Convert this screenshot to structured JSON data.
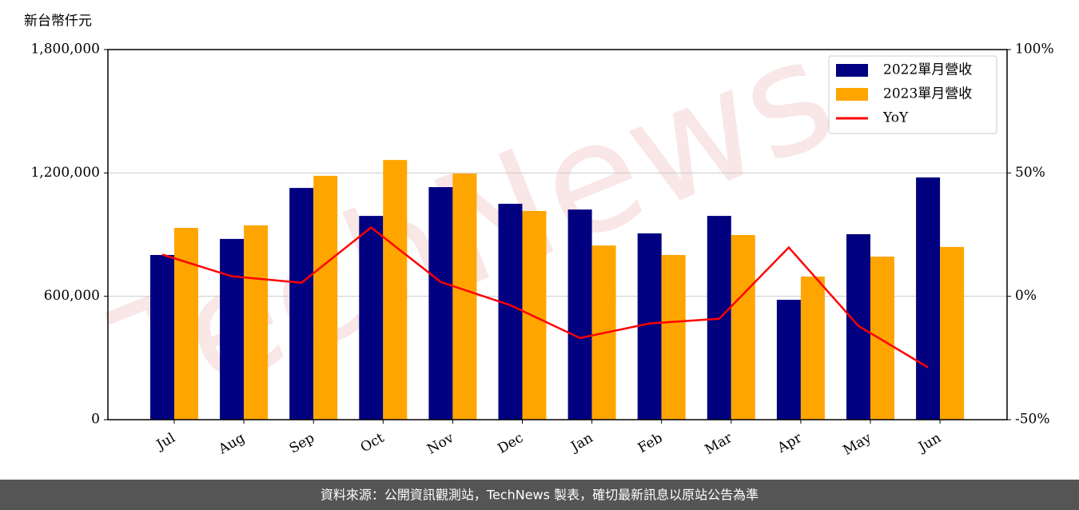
{
  "chart_data": {
    "type": "bar",
    "y_label": "新台幣仟元",
    "watermark": "TechNews",
    "source": "資料來源：公開資訊觀測站，TechNews 製表，確切最新訊息以原站公告為準",
    "categories": [
      "Jul",
      "Aug",
      "Sep",
      "Oct",
      "Nov",
      "Dec",
      "Jan",
      "Feb",
      "Mar",
      "Apr",
      "May",
      "Jun"
    ],
    "series": [
      {
        "name": "2022單月營收",
        "color": "#000080",
        "type": "bar",
        "values": [
          801000,
          879000,
          1127000,
          991000,
          1131000,
          1050000,
          1022000,
          906000,
          991000,
          583000,
          902000,
          1178000
        ]
      },
      {
        "name": "2023單月營收",
        "color": "#ffa500",
        "type": "bar",
        "values": [
          933000,
          945000,
          1186000,
          1263000,
          1197000,
          1015000,
          847000,
          801000,
          898000,
          696000,
          793000,
          840000
        ]
      },
      {
        "name": "YoY",
        "color": "#ff0000",
        "type": "line",
        "axis": "y2",
        "values": [
          16.9,
          8.1,
          5.5,
          27.9,
          5.8,
          -3.6,
          -16.9,
          -11.0,
          -9.1,
          19.8,
          -12.0,
          -28.8
        ]
      }
    ],
    "ylim": [
      0,
      1800000
    ],
    "yticks": [
      0,
      {
        "value": 600000,
        "label": "600,000"
      },
      {
        "value": 1200000,
        "label": "1,200,000"
      },
      {
        "value": 1800000,
        "label": "1,800,000"
      }
    ],
    "y2lim": [
      -50,
      100
    ],
    "y2ticks": [
      {
        "value": -50,
        "label": "-50%"
      },
      {
        "value": 0,
        "label": "0%"
      },
      {
        "value": 50,
        "label": "50%"
      },
      {
        "value": 100,
        "label": "100%"
      }
    ],
    "grid": true,
    "legend": "upper right"
  }
}
